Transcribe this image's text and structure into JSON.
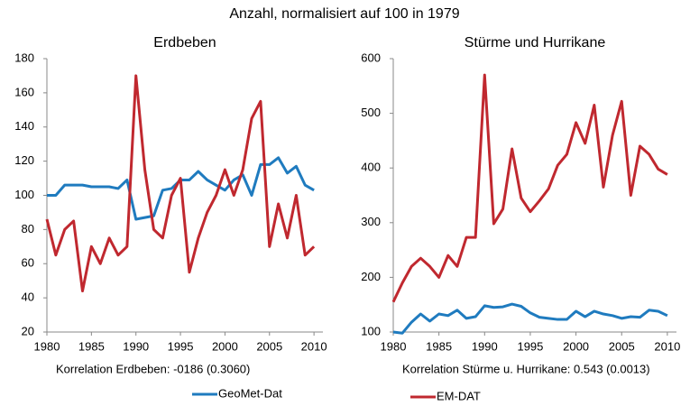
{
  "title": "Anzahl, normalisiert auf 100 in 1979",
  "chart_data": [
    {
      "type": "line",
      "title": "Erdbeben",
      "note": "Korrelation Erdbeben: -0186 (0.3060)",
      "x": [
        1980,
        1981,
        1982,
        1983,
        1984,
        1985,
        1986,
        1987,
        1988,
        1989,
        1990,
        1991,
        1992,
        1993,
        1994,
        1995,
        1996,
        1997,
        1998,
        1999,
        2000,
        2001,
        2002,
        2003,
        2004,
        2005,
        2006,
        2007,
        2008,
        2009,
        2010
      ],
      "series": [
        {
          "name": "GeoMet-Dat",
          "color": "#1f7bbf",
          "values": [
            100,
            100,
            106,
            106,
            106,
            105,
            105,
            105,
            104,
            109,
            86,
            87,
            88,
            103,
            104,
            109,
            109,
            114,
            109,
            106,
            103,
            109,
            112,
            100,
            118,
            118,
            122,
            113,
            117,
            106,
            103
          ]
        },
        {
          "name": "EM-DAT",
          "color": "#c0282f",
          "values": [
            86,
            65,
            80,
            85,
            44,
            70,
            60,
            75,
            65,
            70,
            170,
            115,
            80,
            75,
            100,
            110,
            55,
            75,
            90,
            100,
            115,
            100,
            115,
            145,
            155,
            70,
            95,
            75,
            100,
            65,
            70
          ]
        }
      ],
      "xlim": [
        1980,
        2011
      ],
      "xticks": [
        1980,
        1985,
        1990,
        1995,
        2000,
        2005,
        2010
      ],
      "ylim": [
        20,
        180
      ],
      "yticks": [
        20,
        40,
        60,
        80,
        100,
        120,
        140,
        160,
        180
      ]
    },
    {
      "type": "line",
      "title": "Stürme und Hurrikane",
      "note": "Korrelation Stürme u. Hurrikane: 0.543 (0.0013)",
      "x": [
        1980,
        1981,
        1982,
        1983,
        1984,
        1985,
        1986,
        1987,
        1988,
        1989,
        1990,
        1991,
        1992,
        1993,
        1994,
        1995,
        1996,
        1997,
        1998,
        1999,
        2000,
        2001,
        2002,
        2003,
        2004,
        2005,
        2006,
        2007,
        2008,
        2009,
        2010
      ],
      "series": [
        {
          "name": "GeoMet-Dat",
          "color": "#1f7bbf",
          "values": [
            100,
            98,
            118,
            133,
            120,
            133,
            130,
            140,
            125,
            128,
            148,
            145,
            146,
            151,
            147,
            135,
            127,
            125,
            123,
            123,
            138,
            128,
            138,
            133,
            130,
            125,
            128,
            127,
            140,
            138,
            130
          ]
        },
        {
          "name": "EM-DAT",
          "color": "#c0282f",
          "values": [
            155,
            190,
            220,
            235,
            220,
            200,
            240,
            220,
            273,
            273,
            570,
            298,
            325,
            435,
            345,
            320,
            340,
            362,
            405,
            425,
            483,
            445,
            515,
            365,
            460,
            522,
            350,
            440,
            425,
            398,
            388
          ]
        }
      ],
      "xlim": [
        1980,
        2011
      ],
      "xticks": [
        1980,
        1985,
        1990,
        1995,
        2000,
        2005,
        2010
      ],
      "ylim": [
        100,
        600
      ],
      "yticks": [
        100,
        200,
        300,
        400,
        500,
        600
      ]
    }
  ]
}
